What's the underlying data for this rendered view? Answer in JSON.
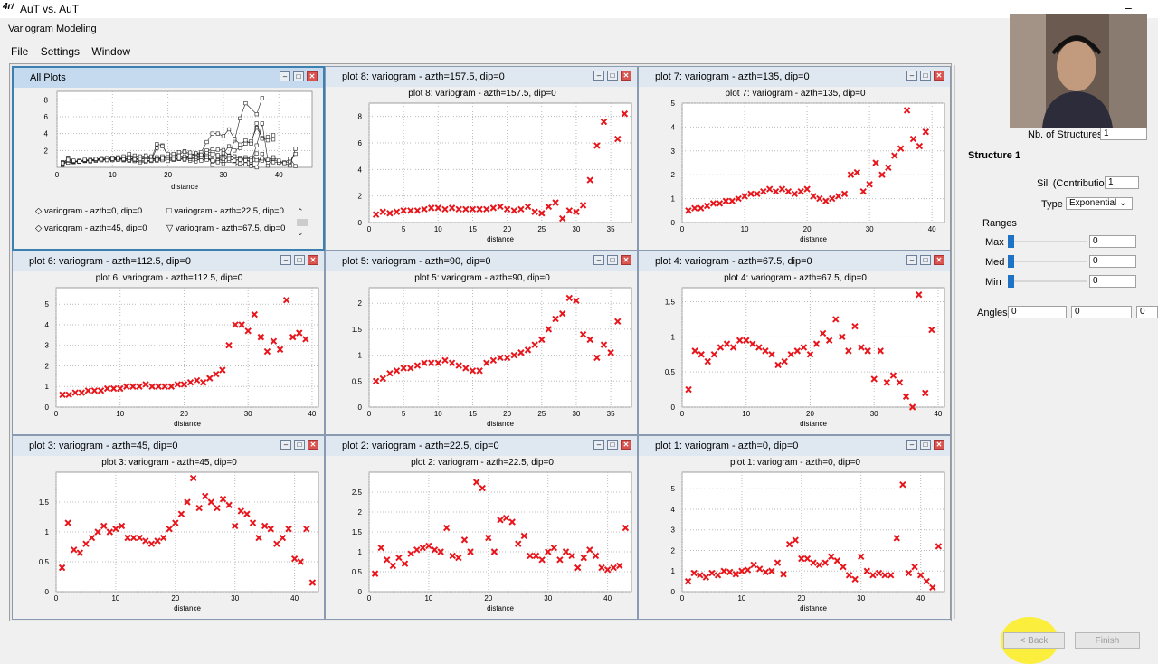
{
  "window": {
    "icon_text": "4r/",
    "title": "AuT vs. AuT",
    "subtitle": "Variogram Modeling"
  },
  "menu": [
    "File",
    "Settings",
    "Window"
  ],
  "all_plots": {
    "title": "All Plots",
    "xlabel": "distance",
    "xticks": [
      0,
      10,
      20,
      30,
      40
    ],
    "yticks": [
      2,
      4,
      6,
      8
    ],
    "legend": [
      "variogram - azth=0, dip=0",
      "variogram - azth=22.5, dip=0",
      "variogram - azth=45, dip=0",
      "variogram - azth=67.5, dip=0"
    ],
    "scroll_up": "⌃",
    "scroll_down": "⌄"
  },
  "window_buttons": {
    "minimize": "–",
    "maximize": "□",
    "close": "✕"
  },
  "chart_data": [
    {
      "type": "scatter",
      "frame_title": "plot 8:  variogram - azth=157.5, dip=0",
      "title": "plot 8:  variogram - azth=157.5, dip=0",
      "xlabel": "distance",
      "xlim": [
        0,
        38
      ],
      "ylim": [
        0,
        9
      ],
      "xticks": [
        0,
        5,
        10,
        15,
        20,
        25,
        30,
        35
      ],
      "yticks": [
        0,
        2,
        4,
        6,
        8
      ],
      "x": [
        1,
        2,
        3,
        4,
        5,
        6,
        7,
        8,
        9,
        10,
        11,
        12,
        13,
        14,
        15,
        16,
        17,
        18,
        19,
        20,
        21,
        22,
        23,
        24,
        25,
        26,
        27,
        28,
        29,
        30,
        31,
        32,
        33,
        34,
        36,
        37
      ],
      "y": [
        0.6,
        0.8,
        0.7,
        0.8,
        0.9,
        0.9,
        0.9,
        1.0,
        1.1,
        1.1,
        1.0,
        1.1,
        1.0,
        1.0,
        1.0,
        1.0,
        1.0,
        1.1,
        1.2,
        1.0,
        0.9,
        1.0,
        1.2,
        0.8,
        0.7,
        1.2,
        1.5,
        0.3,
        0.9,
        0.8,
        1.3,
        3.2,
        5.8,
        7.6,
        6.3,
        8.2
      ]
    },
    {
      "type": "scatter",
      "frame_title": "plot 7:  variogram - azth=135, dip=0",
      "title": "plot 7:  variogram - azth=135, dip=0",
      "xlabel": "distance",
      "xlim": [
        0,
        42
      ],
      "ylim": [
        0,
        5
      ],
      "xticks": [
        0,
        10,
        20,
        30,
        40
      ],
      "yticks": [
        0,
        1,
        2,
        3,
        4,
        5
      ],
      "x": [
        1,
        2,
        3,
        4,
        5,
        6,
        7,
        8,
        9,
        10,
        11,
        12,
        13,
        14,
        15,
        16,
        17,
        18,
        19,
        20,
        21,
        22,
        23,
        24,
        25,
        26,
        27,
        28,
        29,
        30,
        31,
        32,
        33,
        34,
        35,
        36,
        37,
        38,
        39
      ],
      "y": [
        0.5,
        0.6,
        0.6,
        0.7,
        0.8,
        0.8,
        0.9,
        0.9,
        1.0,
        1.1,
        1.2,
        1.2,
        1.3,
        1.4,
        1.3,
        1.4,
        1.3,
        1.2,
        1.3,
        1.4,
        1.1,
        1.0,
        0.9,
        1.0,
        1.1,
        1.2,
        2.0,
        2.1,
        1.3,
        1.6,
        2.5,
        2.0,
        2.3,
        2.8,
        3.1,
        4.7,
        3.5,
        3.2,
        3.8
      ]
    },
    {
      "type": "scatter",
      "frame_title": "plot 6:  variogram - azth=112.5, dip=0",
      "title": "plot 6:  variogram - azth=112.5, dip=0",
      "xlabel": "distance",
      "xlim": [
        0,
        41
      ],
      "ylim": [
        0,
        5.8
      ],
      "xticks": [
        0,
        10,
        20,
        30,
        40
      ],
      "yticks": [
        0,
        1,
        2,
        3,
        4,
        5
      ],
      "x": [
        1,
        2,
        3,
        4,
        5,
        6,
        7,
        8,
        9,
        10,
        11,
        12,
        13,
        14,
        15,
        16,
        17,
        18,
        19,
        20,
        21,
        22,
        23,
        24,
        25,
        26,
        27,
        28,
        29,
        30,
        31,
        32,
        33,
        34,
        35,
        36,
        37,
        38,
        39
      ],
      "y": [
        0.6,
        0.6,
        0.7,
        0.7,
        0.8,
        0.8,
        0.8,
        0.9,
        0.9,
        0.9,
        1.0,
        1.0,
        1.0,
        1.1,
        1.0,
        1.0,
        1.0,
        1.0,
        1.1,
        1.1,
        1.2,
        1.3,
        1.2,
        1.4,
        1.6,
        1.8,
        3.0,
        4.0,
        4.0,
        3.7,
        4.5,
        3.4,
        2.7,
        3.2,
        2.8,
        5.2,
        3.4,
        3.6,
        3.3
      ]
    },
    {
      "type": "scatter",
      "frame_title": "plot 5:  variogram - azth=90, dip=0",
      "title": "plot 5:  variogram - azth=90, dip=0",
      "xlabel": "distance",
      "xlim": [
        0,
        38
      ],
      "ylim": [
        0,
        2.3
      ],
      "xticks": [
        0,
        5,
        10,
        15,
        20,
        25,
        30,
        35
      ],
      "yticks": [
        0,
        0.5,
        1,
        1.5,
        2
      ],
      "x": [
        1,
        2,
        3,
        4,
        5,
        6,
        7,
        8,
        9,
        10,
        11,
        12,
        13,
        14,
        15,
        16,
        17,
        18,
        19,
        20,
        21,
        22,
        23,
        24,
        25,
        26,
        27,
        28,
        29,
        30,
        31,
        32,
        33,
        34,
        35,
        36
      ],
      "y": [
        0.5,
        0.55,
        0.65,
        0.7,
        0.75,
        0.75,
        0.8,
        0.85,
        0.85,
        0.85,
        0.9,
        0.85,
        0.8,
        0.75,
        0.7,
        0.7,
        0.85,
        0.9,
        0.95,
        0.95,
        1.0,
        1.05,
        1.1,
        1.2,
        1.3,
        1.5,
        1.7,
        1.8,
        2.1,
        2.05,
        1.4,
        1.3,
        0.95,
        1.2,
        1.05,
        1.65
      ]
    },
    {
      "type": "scatter",
      "frame_title": "plot 4:  variogram - azth=67.5, dip=0",
      "title": "plot 4:  variogram - azth=67.5, dip=0",
      "xlabel": "distance",
      "xlim": [
        0,
        41
      ],
      "ylim": [
        0,
        1.7
      ],
      "xticks": [
        0,
        10,
        20,
        30,
        40
      ],
      "yticks": [
        0,
        0.5,
        1,
        1.5
      ],
      "x": [
        1,
        2,
        3,
        4,
        5,
        6,
        7,
        8,
        9,
        10,
        11,
        12,
        13,
        14,
        15,
        16,
        17,
        18,
        19,
        20,
        21,
        22,
        23,
        24,
        25,
        26,
        27,
        28,
        29,
        30,
        31,
        32,
        33,
        34,
        35,
        36,
        37,
        38,
        39
      ],
      "y": [
        0.25,
        0.8,
        0.75,
        0.65,
        0.75,
        0.85,
        0.9,
        0.85,
        0.95,
        0.95,
        0.9,
        0.85,
        0.8,
        0.75,
        0.6,
        0.65,
        0.75,
        0.8,
        0.85,
        0.75,
        0.9,
        1.05,
        0.95,
        1.25,
        1.0,
        0.8,
        1.15,
        0.85,
        0.8,
        0.4,
        0.8,
        0.35,
        0.45,
        0.35,
        0.15,
        0.0,
        1.6,
        0.2,
        1.1
      ]
    },
    {
      "type": "scatter",
      "frame_title": "plot 3:  variogram - azth=45, dip=0",
      "title": "plot 3:  variogram - azth=45, dip=0",
      "xlabel": "distance",
      "xlim": [
        0,
        44
      ],
      "ylim": [
        0,
        2.0
      ],
      "xticks": [
        0,
        10,
        20,
        30,
        40
      ],
      "yticks": [
        0,
        0.5,
        1,
        1.5
      ],
      "x": [
        1,
        2,
        3,
        4,
        5,
        6,
        7,
        8,
        9,
        10,
        11,
        12,
        13,
        14,
        15,
        16,
        17,
        18,
        19,
        20,
        21,
        22,
        23,
        24,
        25,
        26,
        27,
        28,
        29,
        30,
        31,
        32,
        33,
        34,
        35,
        36,
        37,
        38,
        39,
        40,
        41,
        42,
        43
      ],
      "y": [
        0.4,
        1.15,
        0.7,
        0.65,
        0.8,
        0.9,
        1.0,
        1.1,
        1.0,
        1.05,
        1.1,
        0.9,
        0.9,
        0.9,
        0.85,
        0.8,
        0.85,
        0.9,
        1.05,
        1.15,
        1.3,
        1.5,
        1.9,
        1.4,
        1.6,
        1.5,
        1.4,
        1.55,
        1.45,
        1.1,
        1.35,
        1.3,
        1.15,
        0.9,
        1.1,
        1.05,
        0.8,
        0.9,
        1.05,
        0.55,
        0.5,
        1.05,
        0.15
      ]
    },
    {
      "type": "scatter",
      "frame_title": "plot 2:  variogram - azth=22.5, dip=0",
      "title": "plot 2:  variogram - azth=22.5, dip=0",
      "xlabel": "distance",
      "xlim": [
        0,
        44
      ],
      "ylim": [
        0,
        3.0
      ],
      "xticks": [
        0,
        10,
        20,
        30,
        40
      ],
      "yticks": [
        0,
        0.5,
        1,
        1.5,
        2,
        2.5
      ],
      "x": [
        1,
        2,
        3,
        4,
        5,
        6,
        7,
        8,
        9,
        10,
        11,
        12,
        13,
        14,
        15,
        16,
        17,
        18,
        19,
        20,
        21,
        22,
        23,
        24,
        25,
        26,
        27,
        28,
        29,
        30,
        31,
        32,
        33,
        34,
        35,
        36,
        37,
        38,
        39,
        40,
        41,
        42,
        43
      ],
      "y": [
        0.45,
        1.1,
        0.8,
        0.65,
        0.85,
        0.7,
        0.95,
        1.05,
        1.1,
        1.15,
        1.05,
        1.0,
        1.6,
        0.9,
        0.85,
        1.3,
        1.0,
        2.75,
        2.6,
        1.35,
        1.0,
        1.8,
        1.85,
        1.75,
        1.2,
        1.4,
        0.9,
        0.9,
        0.8,
        1.0,
        1.1,
        0.8,
        1.0,
        0.9,
        0.6,
        0.85,
        1.05,
        0.9,
        0.6,
        0.55,
        0.6,
        0.65,
        1.6
      ]
    },
    {
      "type": "scatter",
      "frame_title": "plot 1:  variogram - azth=0, dip=0",
      "title": "plot 1:  variogram - azth=0, dip=0",
      "xlabel": "distance",
      "xlim": [
        0,
        44
      ],
      "ylim": [
        0,
        5.8
      ],
      "xticks": [
        0,
        10,
        20,
        30,
        40
      ],
      "yticks": [
        0,
        1,
        2,
        3,
        4,
        5
      ],
      "x": [
        1,
        2,
        3,
        4,
        5,
        6,
        7,
        8,
        9,
        10,
        11,
        12,
        13,
        14,
        15,
        16,
        17,
        18,
        19,
        20,
        21,
        22,
        23,
        24,
        25,
        26,
        27,
        28,
        29,
        30,
        31,
        32,
        33,
        34,
        35,
        36,
        37,
        38,
        39,
        40,
        41,
        42,
        43
      ],
      "y": [
        0.5,
        0.9,
        0.8,
        0.7,
        0.9,
        0.8,
        1.0,
        0.95,
        0.85,
        1.0,
        1.05,
        1.3,
        1.1,
        0.95,
        1.0,
        1.4,
        0.85,
        2.3,
        2.5,
        1.6,
        1.6,
        1.4,
        1.3,
        1.4,
        1.7,
        1.5,
        1.2,
        0.8,
        0.6,
        1.7,
        1.0,
        0.8,
        0.9,
        0.8,
        0.8,
        2.6,
        5.2,
        0.9,
        1.2,
        0.8,
        0.5,
        0.2,
        2.2
      ]
    }
  ],
  "structure": {
    "nb_label": "Nb. of Structures",
    "nb_value": "1",
    "heading": "Structure 1",
    "sill_label": "Sill (Contribution)",
    "sill_value": "1",
    "type_label": "Type",
    "type_value": "Exponential",
    "ranges_label": "Ranges",
    "max_label": "Max",
    "max_value": "0",
    "med_label": "Med",
    "med_value": "0",
    "min_label": "Min",
    "min_value": "0",
    "angles_label": "Angles",
    "angle1": "0",
    "angle2": "0",
    "angle3": "0"
  },
  "bottom": {
    "back_label": "< Back",
    "finish_label": "Finish"
  },
  "colors": {
    "marker": "#e8151b",
    "accent": "#1f73c4"
  }
}
